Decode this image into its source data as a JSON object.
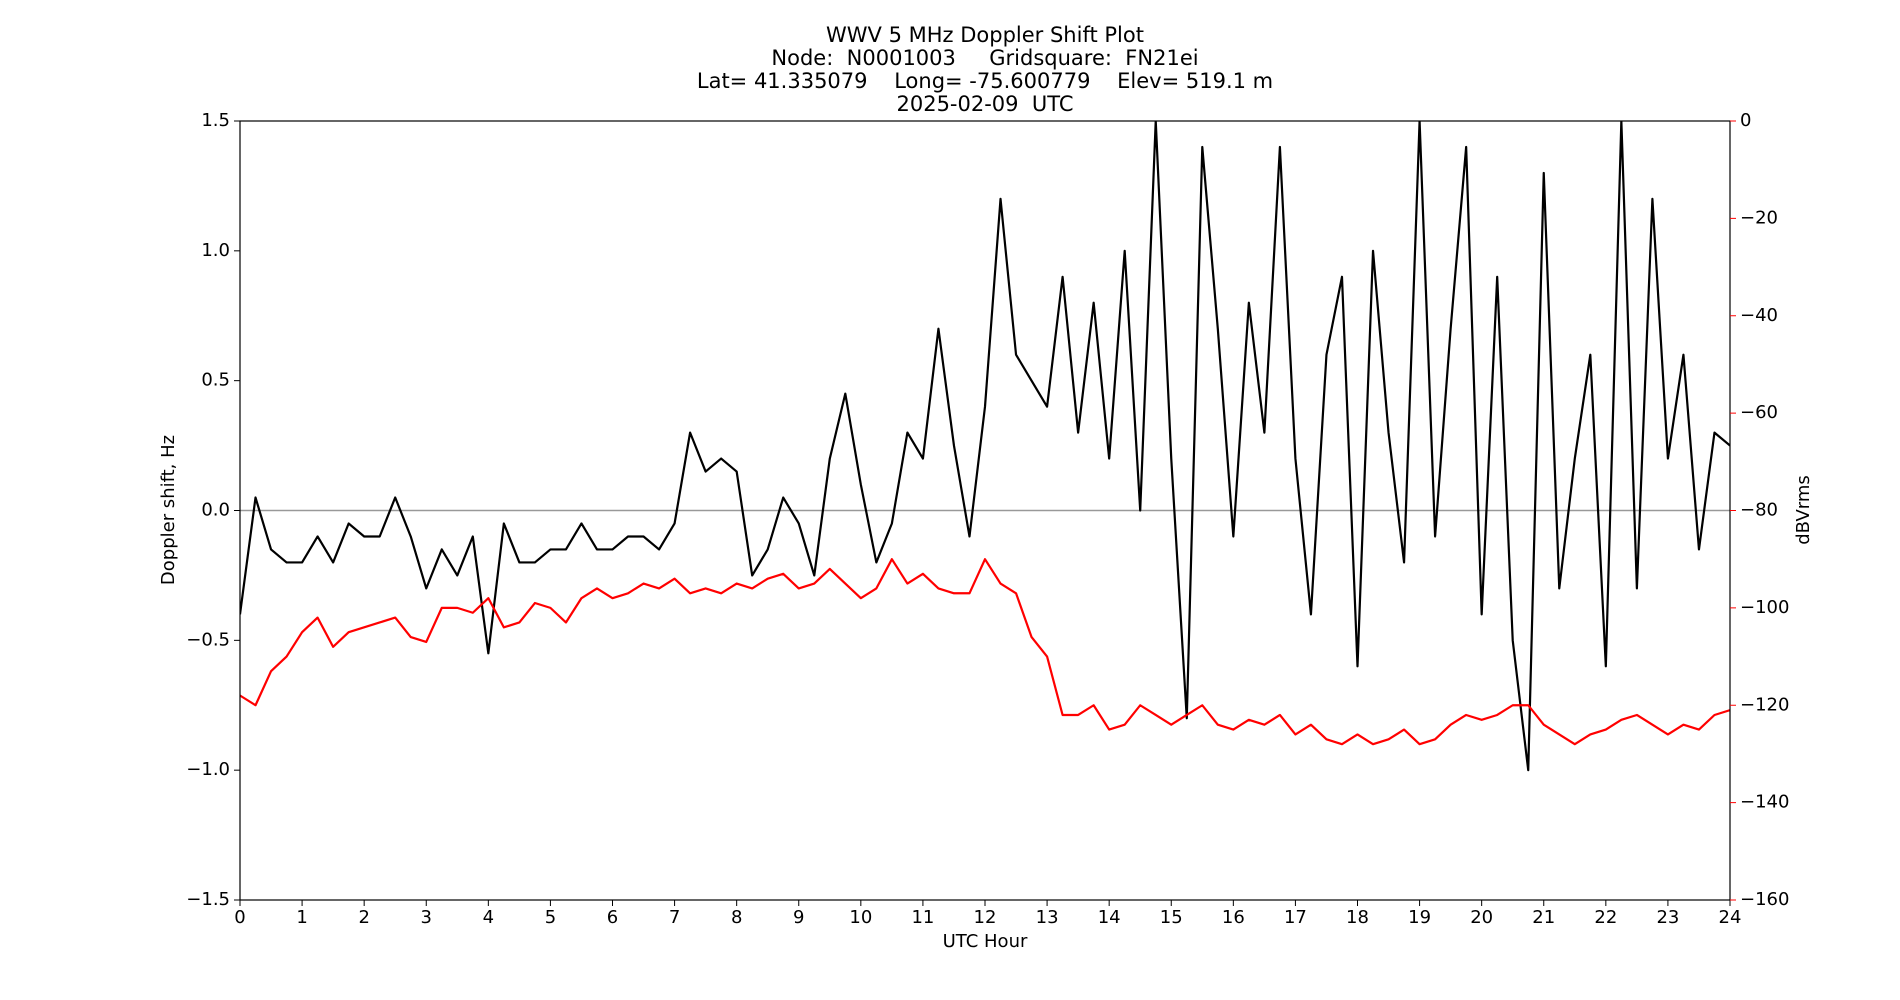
{
  "chart_data": {
    "type": "line",
    "title": [
      "WWV 5 MHz Doppler Shift Plot",
      "Node:  N0001003     Gridsquare:  FN21ei",
      "Lat= 41.335079    Long= -75.600779    Elev= 519.1 m",
      "2025-02-09  UTC"
    ],
    "x_label": "UTC Hour",
    "y_label": "Doppler shift, Hz",
    "y2_label": "dBVrms",
    "x": [
      0,
      0.25,
      0.5,
      0.75,
      1,
      1.25,
      1.5,
      1.75,
      2,
      2.25,
      2.5,
      2.75,
      3,
      3.25,
      3.5,
      3.75,
      4,
      4.25,
      4.5,
      4.75,
      5,
      5.25,
      5.5,
      5.75,
      6,
      6.25,
      6.5,
      6.75,
      7,
      7.25,
      7.5,
      7.75,
      8,
      8.25,
      8.5,
      8.75,
      9,
      9.25,
      9.5,
      9.75,
      10,
      10.25,
      10.5,
      10.75,
      11,
      11.25,
      11.5,
      11.75,
      12,
      12.25,
      12.5,
      12.75,
      13,
      13.25,
      13.5,
      13.75,
      14,
      14.25,
      14.5,
      14.75,
      15,
      15.25,
      15.5,
      15.75,
      16,
      16.25,
      16.5,
      16.75,
      17,
      17.25,
      17.5,
      17.75,
      18,
      18.25,
      18.5,
      18.75,
      19,
      19.25,
      19.5,
      19.75,
      20,
      20.25,
      20.5,
      20.75,
      21,
      21.25,
      21.5,
      21.75,
      22,
      22.25,
      22.5,
      22.75,
      23,
      23.25,
      23.5,
      23.75,
      24
    ],
    "series": [
      {
        "color": "#000000",
        "values": [
          -0.4,
          0.05,
          -0.15,
          -0.2,
          -0.2,
          -0.1,
          -0.2,
          -0.05,
          -0.1,
          -0.1,
          0.05,
          -0.1,
          -0.3,
          -0.15,
          -0.25,
          -0.1,
          -0.55,
          -0.05,
          -0.2,
          -0.2,
          -0.15,
          -0.15,
          -0.05,
          -0.15,
          -0.15,
          -0.1,
          -0.1,
          -0.15,
          -0.05,
          0.3,
          0.15,
          0.2,
          0.15,
          -0.25,
          -0.15,
          0.05,
          -0.05,
          -0.25,
          0.2,
          0.45,
          0.1,
          -0.2,
          -0.05,
          0.3,
          0.2,
          0.7,
          0.25,
          -0.1,
          0.4,
          1.2,
          0.6,
          0.5,
          0.4,
          0.9,
          0.3,
          0.8,
          0.2,
          1.0,
          0.0,
          1.5,
          0.2,
          -0.8,
          1.4,
          0.7,
          -0.1,
          0.8,
          0.3,
          1.4,
          0.2,
          -0.4,
          0.6,
          0.9,
          -0.6,
          1.0,
          0.3,
          -0.2,
          1.5,
          -0.1,
          0.7,
          1.4,
          -0.4,
          0.9,
          -0.5,
          -1.0,
          1.3,
          -0.3,
          0.2,
          0.6,
          -0.6,
          1.5,
          -0.3,
          1.2,
          0.2,
          0.6,
          -0.15,
          0.3,
          0.25
        ]
      },
      {
        "color": "#ff0000",
        "axis": "y2",
        "values": [
          -118,
          -120,
          -113,
          -110,
          -105,
          -102,
          -108,
          -105,
          -104,
          -103,
          -102,
          -106,
          -107,
          -100,
          -100,
          -101,
          -98,
          -104,
          -103,
          -99,
          -100,
          -103,
          -98,
          -96,
          -98,
          -97,
          -95,
          -96,
          -94,
          -97,
          -96,
          -97,
          -95,
          -96,
          -94,
          -93,
          -96,
          -95,
          -92,
          -95,
          -98,
          -96,
          -90,
          -95,
          -93,
          -96,
          -97,
          -97,
          -90,
          -95,
          -97,
          -106,
          -110,
          -122,
          -122,
          -120,
          -125,
          -124,
          -120,
          -122,
          -124,
          -122,
          -120,
          -124,
          -125,
          -123,
          -124,
          -122,
          -126,
          -124,
          -127,
          -128,
          -126,
          -128,
          -127,
          -125,
          -128,
          -127,
          -124,
          -122,
          -123,
          -122,
          -120,
          -120,
          -124,
          -126,
          -128,
          -126,
          -125,
          -123,
          -122,
          -124,
          -126,
          -124,
          -125,
          -122,
          -121
        ]
      }
    ],
    "xlim": [
      0,
      24
    ],
    "xticks": [
      0,
      1,
      2,
      3,
      4,
      5,
      6,
      7,
      8,
      9,
      10,
      11,
      12,
      13,
      14,
      15,
      16,
      17,
      18,
      19,
      20,
      21,
      22,
      23,
      24
    ],
    "ylim": [
      -1.5,
      1.5
    ],
    "yticks": [
      {
        "value": -1.5,
        "label": "−1.5"
      },
      {
        "value": -1.0,
        "label": "−1.0"
      },
      {
        "value": -0.5,
        "label": "−0.5"
      },
      {
        "value": 0,
        "label": "0.0"
      },
      0.5,
      {
        "value": 1.0,
        "label": "1.0"
      },
      1.5
    ],
    "y2lim": [
      -160,
      0
    ],
    "y2ticks": [
      {
        "value": -160,
        "label": "−160"
      },
      {
        "value": -140,
        "label": "−140"
      },
      {
        "value": -120,
        "label": "−120"
      },
      {
        "value": -100,
        "label": "−100"
      },
      {
        "value": -80,
        "label": "−80"
      },
      {
        "value": -60,
        "label": "−60"
      },
      {
        "value": -40,
        "label": "−40"
      },
      {
        "value": -20,
        "label": "−20"
      },
      0
    ],
    "y2_color": "#ff0000",
    "hline": 0,
    "hline_color": "#999999"
  }
}
